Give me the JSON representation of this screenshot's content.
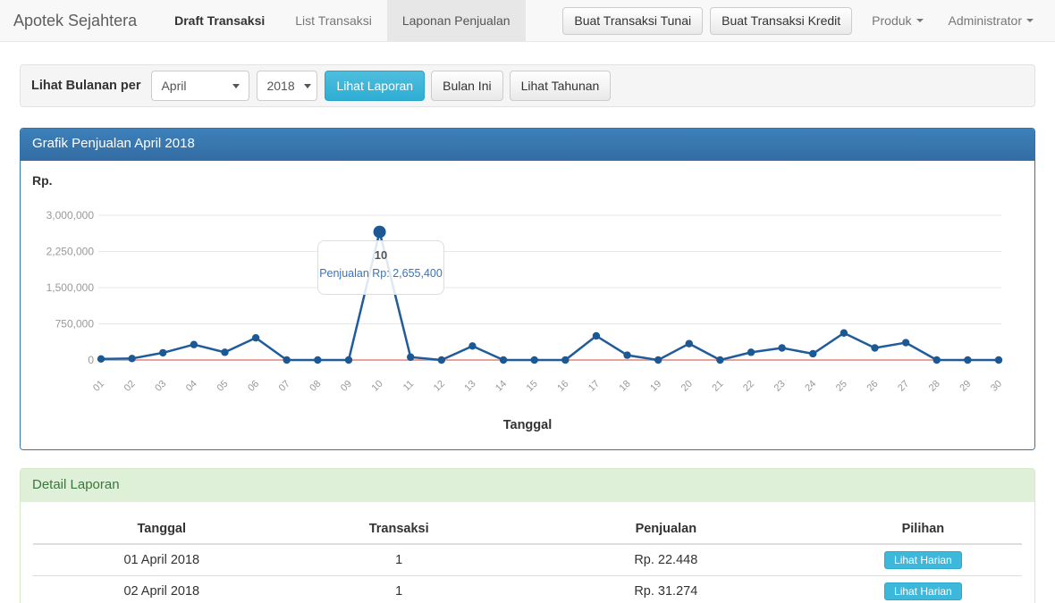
{
  "navbar": {
    "brand": "Apotek Sejahtera",
    "items": [
      {
        "label": "Draft Transaksi",
        "active": false,
        "emphasis": true
      },
      {
        "label": "List Transaksi",
        "active": false,
        "emphasis": false
      },
      {
        "label": "Laponan Penjualan",
        "active": true,
        "emphasis": false
      }
    ],
    "action_buttons": [
      {
        "label": "Buat Transaksi Tunai"
      },
      {
        "label": "Buat Transaksi Kredit"
      }
    ],
    "menus": [
      {
        "label": "Produk"
      },
      {
        "label": "Administrator"
      }
    ]
  },
  "filter": {
    "label": "Lihat Bulanan per",
    "month_value": "April",
    "year_value": "2018",
    "view_report_label": "Lihat Laporan",
    "this_month_label": "Bulan Ini",
    "view_yearly_label": "Lihat Tahunan"
  },
  "chart_panel": {
    "title": "Grafik Penjualan April 2018",
    "currency_label": "Rp.",
    "x_axis_title": "Tanggal",
    "tooltip": {
      "title": "10",
      "text": "Penjualan Rp: 2,655,400"
    }
  },
  "chart_data": {
    "type": "line",
    "title": "Grafik Penjualan April 2018",
    "xlabel": "Tanggal",
    "ylabel": "Rp.",
    "x": [
      "01",
      "02",
      "03",
      "04",
      "05",
      "06",
      "07",
      "08",
      "09",
      "10",
      "11",
      "12",
      "13",
      "14",
      "15",
      "16",
      "17",
      "18",
      "19",
      "20",
      "21",
      "22",
      "23",
      "24",
      "25",
      "26",
      "27",
      "28",
      "29",
      "30"
    ],
    "values": [
      22448,
      31274,
      150000,
      320000,
      160000,
      460000,
      0,
      0,
      0,
      2655400,
      60000,
      0,
      290000,
      0,
      0,
      0,
      500000,
      100000,
      0,
      340000,
      0,
      160000,
      250000,
      130000,
      560000,
      250000,
      360000,
      0,
      0,
      0
    ],
    "ylim": [
      0,
      3000000
    ],
    "yticks": [
      0,
      750000,
      1500000,
      2250000,
      3000000
    ],
    "ytick_labels": [
      "0",
      "750,000",
      "1,500,000",
      "2,250,000",
      "3,000,000"
    ],
    "highlight_index": 9,
    "grid": true,
    "line_color": "#1f5c99",
    "point_color": "#1c5893",
    "baseline_color": "#e8a39d",
    "gridline_color": "#e7e7e7",
    "tick_text_color": "#999999"
  },
  "detail": {
    "title": "Detail Laporan",
    "columns": [
      "Tanggal",
      "Transaksi",
      "Penjualan",
      "Pilihan"
    ],
    "rows": [
      {
        "tanggal": "01 April 2018",
        "transaksi": "1",
        "penjualan": "Rp. 22.448",
        "action": "Lihat Harian"
      },
      {
        "tanggal": "02 April 2018",
        "transaksi": "1",
        "penjualan": "Rp. 31.274",
        "action": "Lihat Harian"
      }
    ]
  },
  "colors": {
    "accent_blue": "#3d80ba",
    "accent_teal": "#3db8da",
    "success_bg": "#dff0d8",
    "success_text": "#3c763d"
  }
}
